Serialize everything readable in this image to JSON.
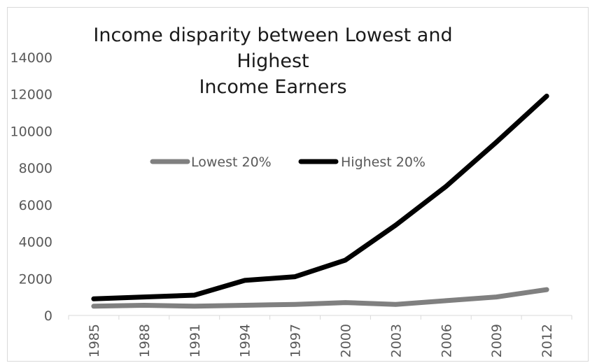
{
  "chart_data": {
    "type": "line",
    "title_lines": [
      "Income disparity between Lowest and Highest",
      "Income Earners"
    ],
    "title": "Income disparity between Lowest and Highest Income Earners",
    "xlabel": "",
    "ylabel": "",
    "categories": [
      "1985",
      "1988",
      "1991",
      "1994",
      "1997",
      "2000",
      "2003",
      "2006",
      "2009",
      "2012"
    ],
    "ylim": [
      0,
      14000
    ],
    "yticks": [
      "0",
      "2000",
      "4000",
      "6000",
      "8000",
      "10000",
      "12000",
      "14000"
    ],
    "grid": false,
    "legend_position": "top-center",
    "series": [
      {
        "name": "Lowest 20%",
        "color": "#808080",
        "values": [
          500,
          550,
          500,
          550,
          600,
          700,
          600,
          800,
          1000,
          1400
        ]
      },
      {
        "name": "Highest 20%",
        "color": "#000000",
        "values": [
          900,
          1000,
          1100,
          1900,
          2100,
          3000,
          4900,
          7000,
          9400,
          11900
        ]
      }
    ]
  }
}
